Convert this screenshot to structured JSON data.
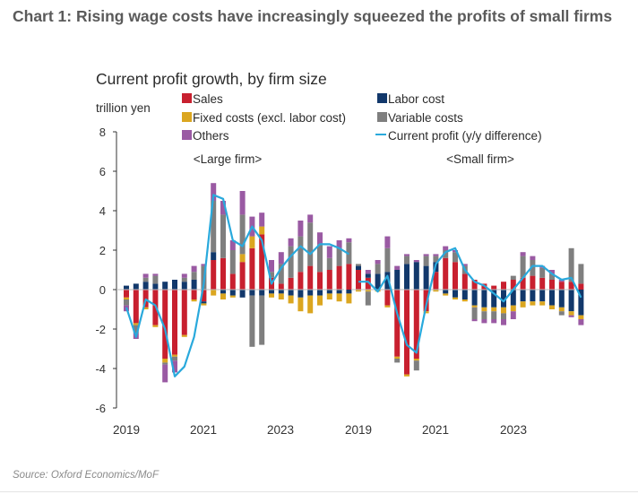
{
  "heading": "Chart 1: Rising wage costs have increasingly squeezed the profits of small firms",
  "source": "Source: Oxford Economics/MoF",
  "chart_data": {
    "type": "bar",
    "title": "Current profit growth, by firm size",
    "ylabel": "trillion yen",
    "ylim": [
      -6,
      8
    ],
    "yticks": [
      -6,
      -4,
      -2,
      0,
      2,
      4,
      6,
      8
    ],
    "panels": [
      {
        "label": "<Large firm>",
        "x_ticks": [
          "2019",
          "2021",
          "2023"
        ],
        "quarters": [
          "2019Q1",
          "2019Q2",
          "2019Q3",
          "2019Q4",
          "2020Q1",
          "2020Q2",
          "2020Q3",
          "2020Q4",
          "2021Q1",
          "2021Q2",
          "2021Q3",
          "2021Q4",
          "2022Q1",
          "2022Q2",
          "2022Q3",
          "2022Q4",
          "2023Q1",
          "2023Q2",
          "2023Q3",
          "2023Q4",
          "2024Q1",
          "2024Q2",
          "2024Q3",
          "2024Q4"
        ],
        "series": [
          {
            "name": "Sales",
            "values": [
              -0.4,
              -1.7,
              -0.9,
              -1.8,
              -3.5,
              -3.3,
              -2.3,
              -0.5,
              -0.6,
              1.5,
              1.6,
              0.8,
              1.4,
              2.1,
              2.8,
              0.6,
              0.3,
              0.6,
              0.9,
              1.2,
              0.9,
              1.0,
              1.2,
              1.3
            ]
          },
          {
            "name": "Labor cost",
            "values": [
              0.2,
              0.3,
              0.4,
              0.3,
              0.4,
              0.5,
              0.4,
              0.5,
              -0.1,
              0.4,
              -0.2,
              -0.3,
              -0.4,
              -0.3,
              -0.3,
              -0.2,
              -0.2,
              -0.3,
              -0.4,
              -0.3,
              -0.3,
              -0.2,
              -0.2,
              -0.2
            ]
          },
          {
            "name": "Fixed costs (excl. labor cost)",
            "values": [
              -0.1,
              -0.1,
              -0.1,
              -0.1,
              -0.2,
              -0.1,
              -0.1,
              -0.1,
              -0.1,
              -0.3,
              -0.3,
              -0.1,
              0.4,
              0.6,
              0.4,
              -0.2,
              -0.3,
              -0.4,
              -0.7,
              -0.9,
              -0.5,
              -0.3,
              -0.4,
              -0.5
            ]
          },
          {
            "name": "Variable costs",
            "values": [
              -0.3,
              -0.4,
              0.2,
              0.4,
              -0.1,
              -0.2,
              0.2,
              0.4,
              1.2,
              2.6,
              2.2,
              1.2,
              2.0,
              -2.6,
              -2.5,
              0.3,
              1.0,
              1.6,
              1.8,
              2.2,
              1.4,
              0.6,
              0.9,
              1.1
            ]
          },
          {
            "name": "Others",
            "values": [
              -0.3,
              -0.3,
              0.2,
              0.1,
              -0.9,
              -0.6,
              0.2,
              0.3,
              0.1,
              0.9,
              0.7,
              0.5,
              1.2,
              1.0,
              0.7,
              0.6,
              0.6,
              0.4,
              0.8,
              0.4,
              0.6,
              0.6,
              0.4,
              0.2
            ]
          }
        ],
        "line": {
          "name": "Current profit (y/y difference)",
          "values": [
            -0.9,
            -2.4,
            -0.5,
            -0.8,
            -2.0,
            -4.4,
            -3.9,
            -2.4,
            0.3,
            4.8,
            4.6,
            2.5,
            2.2,
            3.2,
            2.5,
            0.3,
            1.1,
            1.7,
            2.2,
            1.8,
            2.3,
            2.3,
            2.1,
            1.8
          ]
        }
      },
      {
        "label": "<Small firm>",
        "x_ticks": [
          "2019",
          "2021",
          "2023"
        ],
        "quarters": [
          "2019Q1",
          "2019Q2",
          "2019Q3",
          "2019Q4",
          "2020Q1",
          "2020Q2",
          "2020Q3",
          "2020Q4",
          "2021Q1",
          "2021Q2",
          "2021Q3",
          "2021Q4",
          "2022Q1",
          "2022Q2",
          "2022Q3",
          "2022Q4",
          "2023Q1",
          "2023Q2",
          "2023Q3",
          "2023Q4",
          "2024Q1",
          "2024Q2",
          "2024Q3",
          "2024Q4"
        ],
        "series": [
          {
            "name": "Sales",
            "values": [
              1.0,
              0.6,
              0.0,
              -0.8,
              -3.4,
              -4.3,
              -3.5,
              -1.1,
              0.9,
              1.6,
              1.4,
              0.8,
              0.5,
              0.3,
              0.2,
              0.4,
              0.5,
              0.6,
              0.7,
              0.6,
              0.5,
              0.4,
              0.4,
              0.3
            ]
          },
          {
            "name": "Labor cost",
            "values": [
              0.2,
              0.2,
              0.8,
              0.9,
              1.0,
              1.3,
              1.4,
              1.2,
              0.5,
              -0.2,
              -0.4,
              -0.5,
              -0.8,
              -0.9,
              -0.9,
              -0.9,
              -0.8,
              -0.6,
              -0.6,
              -0.6,
              -0.8,
              -0.9,
              -1.1,
              -1.3
            ]
          },
          {
            "name": "Fixed costs (excl. labor cost)",
            "values": [
              -0.1,
              -0.1,
              -0.1,
              -0.1,
              -0.1,
              -0.1,
              -0.1,
              -0.1,
              -0.1,
              -0.1,
              -0.1,
              -0.1,
              -0.1,
              -0.2,
              -0.2,
              -0.3,
              -0.3,
              -0.3,
              -0.2,
              -0.2,
              -0.2,
              -0.2,
              -0.2,
              -0.2
            ]
          },
          {
            "name": "Variable costs",
            "values": [
              0.1,
              -0.7,
              0.5,
              1.2,
              -0.2,
              0.4,
              -0.5,
              0.5,
              0.3,
              0.4,
              0.5,
              0.4,
              -0.6,
              -0.4,
              -0.4,
              -0.3,
              0.2,
              1.1,
              0.8,
              0.5,
              0.3,
              -0.2,
              1.7,
              1.0
            ]
          },
          {
            "name": "Others",
            "values": [
              0.0,
              0.2,
              0.2,
              0.6,
              0.2,
              0.1,
              0.1,
              0.1,
              0.1,
              0.2,
              0.1,
              0.1,
              -0.1,
              -0.2,
              -0.2,
              -0.3,
              -0.4,
              0.2,
              0.2,
              0.1,
              0.2,
              0.1,
              -0.1,
              -0.3
            ]
          }
        ],
        "line": {
          "name": "Current profit (y/y difference)",
          "values": [
            0.4,
            0.4,
            -0.1,
            0.7,
            -1.2,
            -2.8,
            -3.2,
            -0.8,
            1.3,
            1.9,
            2.1,
            1.0,
            0.4,
            0.2,
            -0.2,
            -0.6,
            0.0,
            0.6,
            1.2,
            1.2,
            0.8,
            0.5,
            0.6,
            -0.4
          ]
        }
      }
    ],
    "legend": [
      {
        "name": "Sales",
        "marker": "square",
        "color": "#c8202f"
      },
      {
        "name": "Labor cost",
        "marker": "square",
        "color": "#12386b"
      },
      {
        "name": "Fixed costs (excl. labor cost)",
        "marker": "square",
        "color": "#dba620"
      },
      {
        "name": "Variable costs",
        "marker": "square",
        "color": "#7f7f7f"
      },
      {
        "name": "Others",
        "marker": "square",
        "color": "#9a5aa3"
      },
      {
        "name": "Current profit (y/y difference)",
        "marker": "line",
        "color": "#29a9dc"
      }
    ],
    "colors": {
      "Sales": "#c8202f",
      "Labor cost": "#12386b",
      "Fixed costs (excl. labor cost)": "#dba620",
      "Variable costs": "#7f7f7f",
      "Others": "#9a5aa3",
      "line": "#29a9dc"
    },
    "grid": false
  }
}
